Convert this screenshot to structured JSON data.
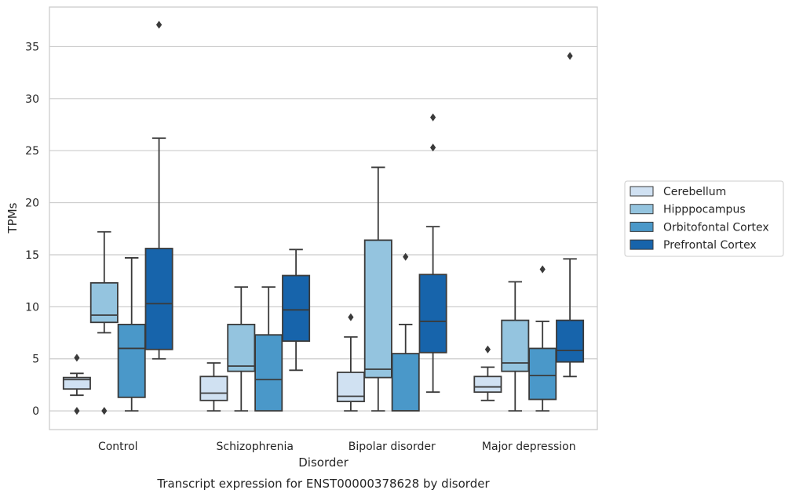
{
  "chart_data": {
    "type": "boxplot",
    "title": "Transcript expression for ENST00000378628 by disorder",
    "xlabel": "Disorder",
    "ylabel": "TPMs",
    "categories": [
      "Control",
      "Schizophrenia",
      "Bipolar disorder",
      "Major depression"
    ],
    "ylim": [
      -1.8,
      38.8
    ],
    "yticks": [
      0,
      5,
      10,
      15,
      20,
      25,
      30,
      35
    ],
    "grid": "horizontal",
    "legend_position": "right",
    "series": [
      {
        "name": "Cerebellum",
        "color": "#d0e1f2",
        "boxes": [
          {
            "whisker_low": 1.5,
            "q1": 2.1,
            "median": 3.0,
            "q3": 3.2,
            "whisker_high": 3.6,
            "outliers": [
              5.1,
              0.0
            ]
          },
          {
            "whisker_low": 0.0,
            "q1": 1.0,
            "median": 1.7,
            "q3": 3.3,
            "whisker_high": 4.6,
            "outliers": []
          },
          {
            "whisker_low": 0.0,
            "q1": 0.9,
            "median": 1.4,
            "q3": 3.7,
            "whisker_high": 7.1,
            "outliers": [
              9.0
            ]
          },
          {
            "whisker_low": 1.0,
            "q1": 1.8,
            "median": 2.3,
            "q3": 3.3,
            "whisker_high": 4.2,
            "outliers": [
              5.9
            ]
          }
        ]
      },
      {
        "name": "Hipppocampus",
        "color": "#94c4df",
        "boxes": [
          {
            "whisker_low": 7.5,
            "q1": 8.5,
            "median": 9.2,
            "q3": 12.3,
            "whisker_high": 17.2,
            "outliers": [
              0.0
            ]
          },
          {
            "whisker_low": 0.0,
            "q1": 3.8,
            "median": 4.3,
            "q3": 8.3,
            "whisker_high": 11.9,
            "outliers": []
          },
          {
            "whisker_low": 0.0,
            "q1": 3.2,
            "median": 4.0,
            "q3": 16.4,
            "whisker_high": 23.4,
            "outliers": []
          },
          {
            "whisker_low": 0.0,
            "q1": 3.8,
            "median": 4.6,
            "q3": 8.7,
            "whisker_high": 12.4,
            "outliers": []
          }
        ]
      },
      {
        "name": "Orbitofontal Cortex",
        "color": "#4a98c9",
        "boxes": [
          {
            "whisker_low": 0.0,
            "q1": 1.3,
            "median": 6.0,
            "q3": 8.3,
            "whisker_high": 14.7,
            "outliers": []
          },
          {
            "whisker_low": 0.0,
            "q1": 0.0,
            "median": 3.0,
            "q3": 7.3,
            "whisker_high": 11.9,
            "outliers": []
          },
          {
            "whisker_low": 0.0,
            "q1": 0.0,
            "median": 0.0,
            "q3": 5.5,
            "whisker_high": 8.3,
            "outliers": [
              14.8
            ]
          },
          {
            "whisker_low": 0.0,
            "q1": 1.1,
            "median": 3.4,
            "q3": 6.0,
            "whisker_high": 8.6,
            "outliers": [
              13.6
            ]
          }
        ]
      },
      {
        "name": "Prefrontal Cortex",
        "color": "#1764ab",
        "boxes": [
          {
            "whisker_low": 5.0,
            "q1": 5.9,
            "median": 10.3,
            "q3": 15.6,
            "whisker_high": 26.2,
            "outliers": [
              37.1
            ]
          },
          {
            "whisker_low": 3.9,
            "q1": 6.7,
            "median": 9.7,
            "q3": 13.0,
            "whisker_high": 15.5,
            "outliers": []
          },
          {
            "whisker_low": 1.8,
            "q1": 5.6,
            "median": 8.6,
            "q3": 13.1,
            "whisker_high": 17.7,
            "outliers": [
              25.3,
              28.2
            ]
          },
          {
            "whisker_low": 3.3,
            "q1": 4.7,
            "median": 5.8,
            "q3": 8.7,
            "whisker_high": 14.6,
            "outliers": [
              34.1
            ]
          }
        ]
      }
    ]
  }
}
